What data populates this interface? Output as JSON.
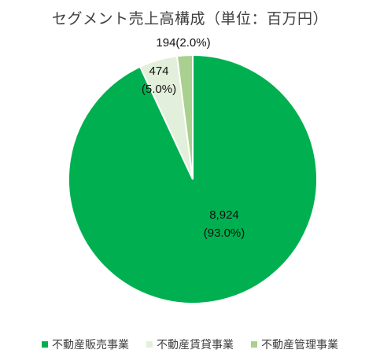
{
  "chart_data": {
    "type": "pie",
    "title": "セグメント売上高構成（単位：百万円）",
    "categories": [
      "不動産販売事業",
      "不動産賃貸事業",
      "不動産管理事業"
    ],
    "values": [
      8924,
      474,
      194
    ],
    "value_labels": [
      "8,924",
      "474",
      "194"
    ],
    "percent_labels": [
      "(93.0%)",
      "(5.0%)",
      "(2.0%)"
    ],
    "colors": [
      "#00b050",
      "#e2efda",
      "#a9d08e"
    ],
    "legend_position": "bottom"
  }
}
